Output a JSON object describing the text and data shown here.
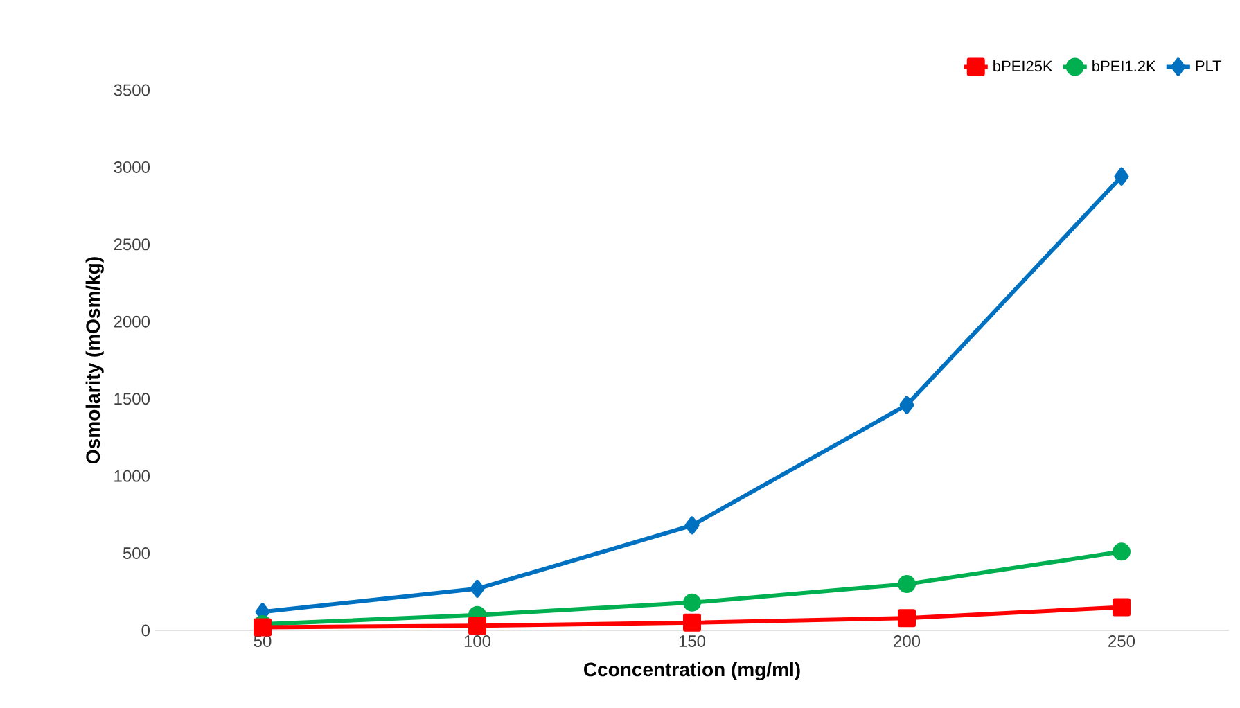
{
  "chart_data": {
    "type": "line",
    "xlabel": "Cconcentration (mg/ml)",
    "ylabel": "Osmolarity (mOsm/kg)",
    "categories": [
      "50",
      "100",
      "150",
      "200",
      "250"
    ],
    "series": [
      {
        "name": "bPEI25K",
        "color": "#ff0000",
        "marker": "square",
        "values": [
          20,
          30,
          50,
          80,
          150
        ]
      },
      {
        "name": "bPEI1.2K",
        "color": "#00b050",
        "marker": "circle",
        "values": [
          40,
          100,
          180,
          300,
          510
        ]
      },
      {
        "name": "PLT",
        "color": "#0070c0",
        "marker": "diamond",
        "values": [
          120,
          270,
          680,
          1460,
          2940
        ]
      }
    ],
    "ylim": [
      0,
      3500
    ],
    "yticks": [
      0,
      500,
      1000,
      1500,
      2000,
      2500,
      3000,
      3500
    ],
    "grid": false,
    "legend": "top right"
  }
}
